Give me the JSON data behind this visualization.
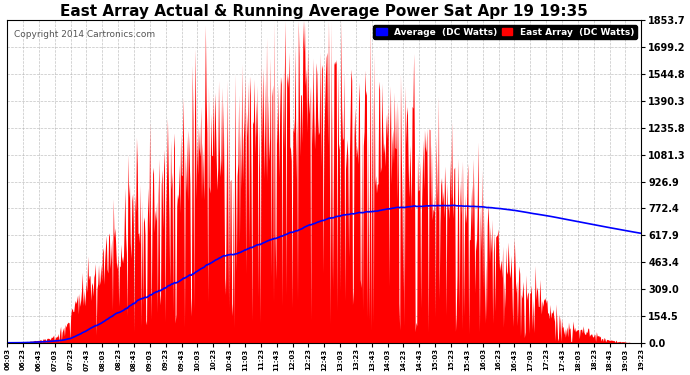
{
  "title": "East Array Actual & Running Average Power Sat Apr 19 19:35",
  "copyright": "Copyright 2014 Cartronics.com",
  "legend_labels": [
    "Average  (DC Watts)",
    "East Array  (DC Watts)"
  ],
  "legend_colors": [
    "#0000ff",
    "#ff0000"
  ],
  "ytick_labels": [
    "0.0",
    "154.5",
    "309.0",
    "463.4",
    "617.9",
    "772.4",
    "926.9",
    "1081.3",
    "1235.8",
    "1390.3",
    "1544.8",
    "1699.2",
    "1853.7"
  ],
  "ytick_values": [
    0.0,
    154.5,
    309.0,
    463.4,
    617.9,
    772.4,
    926.9,
    1081.3,
    1235.8,
    1390.3,
    1544.8,
    1699.2,
    1853.7
  ],
  "ymax": 1853.7,
  "ymin": 0.0,
  "background_color": "#ffffff",
  "plot_bg_color": "#ffffff",
  "grid_color": "#aaaaaa",
  "bar_color": "#ff0000",
  "line_color": "#0000ff",
  "title_fontsize": 11,
  "xtick_labels": [
    "06:03",
    "06:23",
    "06:43",
    "07:03",
    "07:23",
    "07:43",
    "08:03",
    "08:23",
    "08:43",
    "09:03",
    "09:23",
    "09:43",
    "10:03",
    "10:23",
    "10:43",
    "11:03",
    "11:23",
    "11:43",
    "12:03",
    "12:23",
    "12:43",
    "13:03",
    "13:23",
    "13:43",
    "14:03",
    "14:23",
    "14:43",
    "15:03",
    "15:23",
    "15:43",
    "16:03",
    "16:23",
    "16:43",
    "17:03",
    "17:23",
    "17:43",
    "18:03",
    "18:23",
    "18:43",
    "19:03",
    "19:23"
  ],
  "n_points": 820
}
